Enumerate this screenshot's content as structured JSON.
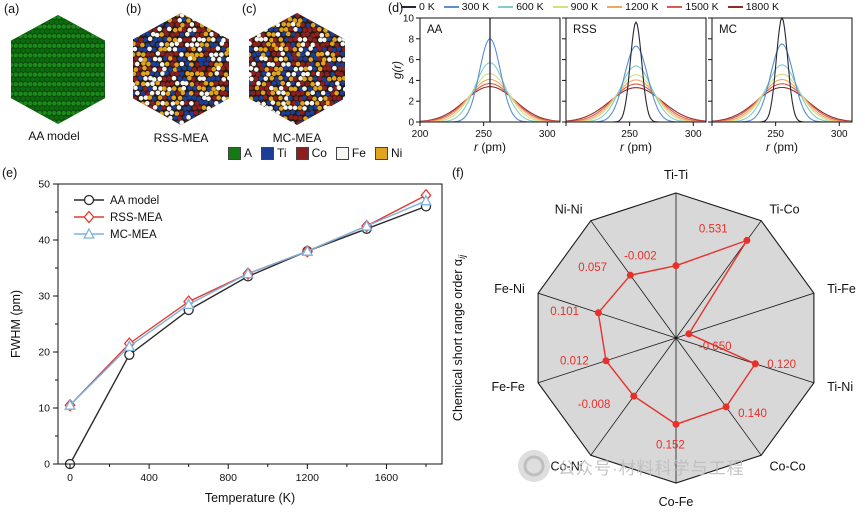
{
  "figure": {
    "panel_a": {
      "tag": "(a)",
      "caption": "AA model"
    },
    "panel_b": {
      "tag": "(b)",
      "caption": "RSS-MEA"
    },
    "panel_c": {
      "tag": "(c)",
      "caption": "MC-MEA"
    },
    "panel_d": {
      "tag": "(d)"
    },
    "panel_e": {
      "tag": "(e)"
    },
    "panel_f": {
      "tag": "(f)"
    },
    "atom_legend": [
      {
        "label": "A",
        "color": "#157a15"
      },
      {
        "label": "Ti",
        "color": "#1c3e99"
      },
      {
        "label": "Co",
        "color": "#8e1f1f"
      },
      {
        "label": "Fe",
        "color": "#f7f7f4"
      },
      {
        "label": "Ni",
        "color": "#e2a41f"
      }
    ]
  },
  "watermark": {
    "text": "公众号·材料科学与工程"
  },
  "chart_data": [
    {
      "id": "pair-distribution",
      "type": "line",
      "xlabel": "r (pm)",
      "ylabel": "g(r)",
      "xlim": [
        200,
        310
      ],
      "ylim": [
        0,
        10
      ],
      "xticks": [
        200,
        250,
        300
      ],
      "yticks": [
        0,
        2,
        4,
        6,
        8,
        10
      ],
      "peak_center_pm": 255,
      "legend": [
        {
          "label": "0 K",
          "color": "#26263a"
        },
        {
          "label": "300 K",
          "color": "#5a8fd0"
        },
        {
          "label": "600 K",
          "color": "#7fcfca"
        },
        {
          "label": "900 K",
          "color": "#d8dc85"
        },
        {
          "label": "1200 K",
          "color": "#f2a75f"
        },
        {
          "label": "1500 K",
          "color": "#dd5a52"
        },
        {
          "label": "1800 K",
          "color": "#8f2c26"
        }
      ],
      "panels": [
        {
          "label": "AA",
          "series": [
            {
              "temp_K": 0,
              "fwhm_pm": 0,
              "peak": 10,
              "delta": true
            },
            {
              "temp_K": 300,
              "fwhm_pm": 19.5,
              "peak": 8.0
            },
            {
              "temp_K": 600,
              "fwhm_pm": 27.5,
              "peak": 5.7
            },
            {
              "temp_K": 900,
              "fwhm_pm": 33.5,
              "peak": 4.65
            },
            {
              "temp_K": 1200,
              "fwhm_pm": 38,
              "peak": 4.1
            },
            {
              "temp_K": 1500,
              "fwhm_pm": 42,
              "peak": 3.7
            },
            {
              "temp_K": 1800,
              "fwhm_pm": 46,
              "peak": 3.4
            }
          ]
        },
        {
          "label": "RSS",
          "series": [
            {
              "temp_K": 0,
              "fwhm_pm": 10.5,
              "peak": 9.6
            },
            {
              "temp_K": 300,
              "fwhm_pm": 21.5,
              "peak": 7.3
            },
            {
              "temp_K": 600,
              "fwhm_pm": 29,
              "peak": 5.4
            },
            {
              "temp_K": 900,
              "fwhm_pm": 34,
              "peak": 4.55
            },
            {
              "temp_K": 1200,
              "fwhm_pm": 38,
              "peak": 4.05
            },
            {
              "temp_K": 1500,
              "fwhm_pm": 42.5,
              "peak": 3.65
            },
            {
              "temp_K": 1800,
              "fwhm_pm": 48,
              "peak": 3.3
            }
          ]
        },
        {
          "label": "MC",
          "series": [
            {
              "temp_K": 0,
              "fwhm_pm": 10.5,
              "peak": 10
            },
            {
              "temp_K": 300,
              "fwhm_pm": 21,
              "peak": 7.5
            },
            {
              "temp_K": 600,
              "fwhm_pm": 28.5,
              "peak": 5.5
            },
            {
              "temp_K": 900,
              "fwhm_pm": 34,
              "peak": 4.6
            },
            {
              "temp_K": 1200,
              "fwhm_pm": 38,
              "peak": 4.08
            },
            {
              "temp_K": 1500,
              "fwhm_pm": 42.5,
              "peak": 3.68
            },
            {
              "temp_K": 1800,
              "fwhm_pm": 47,
              "peak": 3.32
            }
          ]
        }
      ]
    },
    {
      "id": "fwhm-vs-temperature",
      "type": "line",
      "xlabel": "Temperature (K)",
      "ylabel": "FWHM (pm)",
      "xlim": [
        0,
        1850
      ],
      "ylim": [
        0,
        50
      ],
      "xticks": [
        0,
        400,
        800,
        1200,
        1600
      ],
      "yticks": [
        0,
        10,
        20,
        30,
        40,
        50
      ],
      "x": [
        0,
        300,
        600,
        900,
        1200,
        1500,
        1800
      ],
      "series": [
        {
          "name": "AA model",
          "color": "#2b2b2b",
          "marker": "circle",
          "values": [
            0,
            19.5,
            27.5,
            33.5,
            38,
            42,
            46
          ]
        },
        {
          "name": "RSS-MEA",
          "color": "#e23b30",
          "marker": "diamond",
          "values": [
            10.5,
            21.5,
            29,
            34,
            38,
            42.5,
            48
          ]
        },
        {
          "name": "MC-MEA",
          "color": "#7fb2de",
          "marker": "triangle",
          "values": [
            10.5,
            21,
            28.5,
            34,
            38,
            42.5,
            47
          ]
        }
      ],
      "legend_position": "top-left"
    },
    {
      "id": "chemical-short-range-order",
      "type": "radar",
      "axis_label": "Chemical short range order α",
      "axis_label_sub": "ij",
      "categories": [
        "Ti-Ti",
        "Ti-Co",
        "Ti-Fe",
        "Ti-Ni",
        "Co-Co",
        "Co-Fe",
        "Co-Ni",
        "Fe-Fe",
        "Fe-Ni",
        "Ni-Ni"
      ],
      "values": [
        -0.002,
        0.531,
        -0.65,
        0.12,
        0.14,
        0.152,
        -0.008,
        0.012,
        0.101,
        0.057
      ],
      "scale": {
        "center_value": -0.8,
        "edge_value": 0.8
      },
      "fill": "#d8d8d8",
      "line_color": "#e8302a"
    }
  ]
}
